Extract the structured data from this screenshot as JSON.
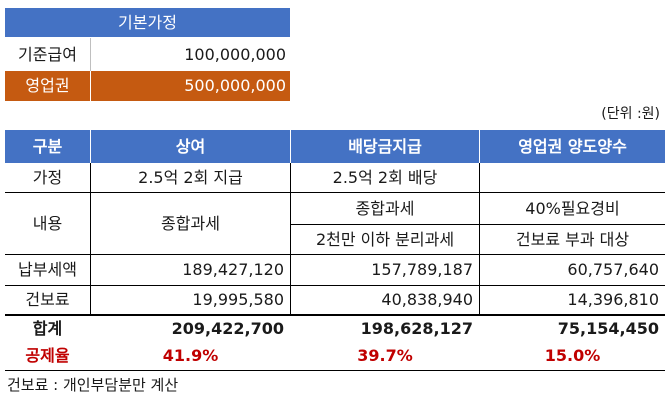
{
  "assumptions": {
    "title": "기본가정",
    "rows": [
      {
        "label": "기준급여",
        "value": "100,000,000"
      },
      {
        "label": "영업권",
        "value": "500,000,000"
      }
    ]
  },
  "unit_note": "(단위 :원)",
  "table": {
    "headers": [
      "구분",
      "상여",
      "배당금지급",
      "영업권 양도양수"
    ],
    "assumption_row": {
      "label": "가정",
      "bonus": "2.5억 2회 지급",
      "dividend": "2.5억 2회 배당",
      "goodwill": ""
    },
    "content_row": {
      "label": "내용",
      "bonus": "종합과세",
      "dividend_line1": "종합과세",
      "dividend_line2": "2천만 이하 분리과세",
      "goodwill_line1": "40%필요경비",
      "goodwill_line2": "건보료 부과 대상"
    },
    "tax_row": {
      "label": "납부세액",
      "bonus": "189,427,120",
      "dividend": "157,789,187",
      "goodwill": "60,757,640"
    },
    "health_row": {
      "label": "건보료",
      "bonus": "19,995,580",
      "dividend": "40,838,940",
      "goodwill": "14,396,810"
    },
    "total_row": {
      "label": "합계",
      "bonus": "209,422,700",
      "dividend": "198,628,127",
      "goodwill": "75,154,450"
    },
    "deduction_row": {
      "label": "공제율",
      "bonus": "41.9%",
      "dividend": "39.7%",
      "goodwill": "15.0%"
    }
  },
  "footnote": "건보료 : 개인부담분만 계산",
  "colors": {
    "header_blue": "#4472c4",
    "goodwill_orange": "#c55a11",
    "rate_red": "#c00000"
  }
}
